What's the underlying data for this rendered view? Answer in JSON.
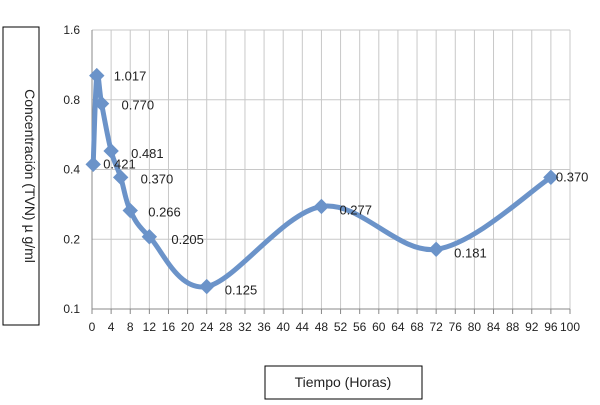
{
  "chart_data": {
    "type": "line",
    "title": "",
    "xlabel": "Tiempo (Horas)",
    "ylabel": "Concentración (TVN) µ g/ml",
    "y_scale": "log2",
    "xlim": [
      0,
      100
    ],
    "ylim": [
      0.1,
      1.6
    ],
    "x_ticks": [
      "0",
      "4",
      "8",
      "12",
      "16",
      "20",
      "24",
      "28",
      "32",
      "36",
      "40",
      "44",
      "48",
      "52",
      "56",
      "60",
      "64",
      "68",
      "72",
      "76",
      "80",
      "84",
      "88",
      "92",
      "96",
      "100"
    ],
    "y_ticks": [
      "0.1",
      "0.2",
      "0.4",
      "0.8",
      "1.6"
    ],
    "grid": true,
    "series_color": "#6B93C9",
    "series": [
      {
        "x": [
          0.25,
          1,
          2,
          4,
          6,
          8,
          12,
          24,
          48,
          72,
          96
        ],
        "values": [
          0.421,
          1.017,
          0.77,
          0.481,
          0.37,
          0.266,
          0.205,
          0.125,
          0.277,
          0.181,
          0.37
        ],
        "labels": [
          "0.421",
          "1.017",
          "0.770",
          "0.481",
          "0.370",
          "0.266",
          "0.205",
          "0.125",
          "0.277",
          "0.181",
          "0.370"
        ]
      }
    ]
  }
}
